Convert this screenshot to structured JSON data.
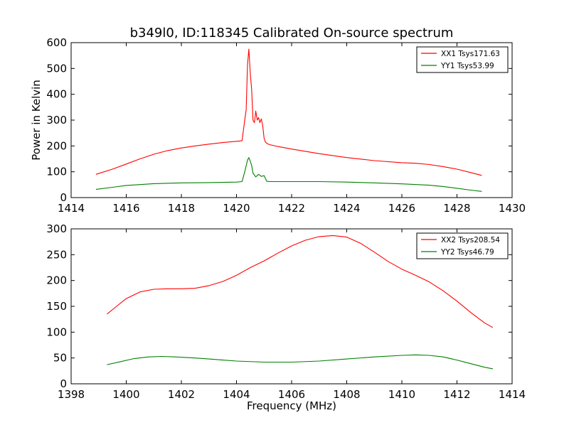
{
  "title": "b349l0, ID:118345 Calibrated On-source spectrum",
  "colors": {
    "xx": "#ff0000",
    "yy": "#008000"
  },
  "chart_data": [
    {
      "type": "line",
      "xlabel": "",
      "ylabel": "Power in Kelvin",
      "xlim": [
        1414,
        1430
      ],
      "ylim": [
        0,
        600
      ],
      "xticks": [
        1414,
        1416,
        1418,
        1420,
        1422,
        1424,
        1426,
        1428,
        1430
      ],
      "yticks": [
        0,
        100,
        200,
        300,
        400,
        500,
        600
      ],
      "legend_position": "top-right",
      "series": [
        {
          "name": "XX1 Tsys171.63",
          "color": "#ff0000",
          "x": [
            1414.9,
            1415.5,
            1416.0,
            1416.5,
            1417.0,
            1417.5,
            1418.0,
            1418.5,
            1419.0,
            1419.5,
            1420.0,
            1420.2,
            1420.3,
            1420.35,
            1420.4,
            1420.45,
            1420.5,
            1420.55,
            1420.6,
            1420.65,
            1420.7,
            1420.75,
            1420.8,
            1420.85,
            1420.9,
            1420.95,
            1421.0,
            1421.05,
            1421.1,
            1421.2,
            1421.5,
            1422.0,
            1423.0,
            1424.0,
            1425.0,
            1426.0,
            1426.5,
            1427.0,
            1427.5,
            1428.0,
            1428.5,
            1428.9
          ],
          "values": [
            90,
            110,
            130,
            150,
            168,
            182,
            192,
            200,
            207,
            213,
            218,
            220,
            300,
            340,
            515,
            575,
            480,
            420,
            300,
            290,
            335,
            300,
            310,
            290,
            305,
            280,
            230,
            215,
            210,
            205,
            198,
            188,
            170,
            155,
            143,
            135,
            133,
            128,
            120,
            110,
            97,
            86
          ]
        },
        {
          "name": "YY1 Tsys53.99",
          "color": "#008000",
          "x": [
            1414.9,
            1415.5,
            1416.0,
            1417.0,
            1418.0,
            1419.0,
            1420.0,
            1420.2,
            1420.3,
            1420.4,
            1420.45,
            1420.5,
            1420.55,
            1420.6,
            1420.7,
            1420.8,
            1420.9,
            1421.0,
            1421.1,
            1421.2,
            1422.0,
            1423.0,
            1424.0,
            1425.0,
            1426.0,
            1427.0,
            1427.5,
            1428.0,
            1428.5,
            1428.9
          ],
          "values": [
            32,
            40,
            47,
            54,
            57,
            58,
            60,
            62,
            100,
            145,
            155,
            140,
            125,
            95,
            80,
            90,
            82,
            85,
            63,
            62,
            62,
            62,
            60,
            57,
            53,
            48,
            43,
            36,
            29,
            24
          ]
        }
      ]
    },
    {
      "type": "line",
      "xlabel": "Frequency (MHz)",
      "ylabel": "",
      "xlim": [
        1398,
        1414
      ],
      "ylim": [
        0,
        300
      ],
      "xticks": [
        1398,
        1400,
        1402,
        1404,
        1406,
        1408,
        1410,
        1412,
        1414
      ],
      "yticks": [
        0,
        50,
        100,
        150,
        200,
        250,
        300
      ],
      "legend_position": "top-right",
      "series": [
        {
          "name": "XX2 Tsys208.54",
          "color": "#ff0000",
          "x": [
            1399.3,
            1399.6,
            1400.0,
            1400.5,
            1401.0,
            1401.5,
            1402.0,
            1402.5,
            1403.0,
            1403.5,
            1404.0,
            1404.5,
            1405.0,
            1405.5,
            1406.0,
            1406.5,
            1407.0,
            1407.5,
            1408.0,
            1408.5,
            1409.0,
            1409.5,
            1410.0,
            1410.5,
            1411.0,
            1411.5,
            1412.0,
            1412.5,
            1413.0,
            1413.3
          ],
          "values": [
            135,
            148,
            165,
            178,
            183,
            184,
            184,
            185,
            190,
            198,
            210,
            225,
            238,
            253,
            267,
            278,
            285,
            287,
            284,
            272,
            255,
            237,
            222,
            210,
            197,
            180,
            160,
            138,
            118,
            109
          ]
        },
        {
          "name": "YY2 Tsys46.79",
          "color": "#008000",
          "x": [
            1399.3,
            1399.8,
            1400.3,
            1400.8,
            1401.3,
            1401.8,
            1402.5,
            1403.0,
            1403.5,
            1404.0,
            1405.0,
            1406.0,
            1407.0,
            1408.0,
            1409.0,
            1410.0,
            1410.5,
            1411.0,
            1411.5,
            1412.0,
            1412.5,
            1413.0,
            1413.3
          ],
          "values": [
            37,
            43,
            49,
            52,
            53,
            52,
            50,
            48,
            46,
            44,
            42,
            42,
            44,
            48,
            52,
            55,
            56,
            55,
            52,
            46,
            39,
            32,
            29
          ]
        }
      ]
    }
  ]
}
